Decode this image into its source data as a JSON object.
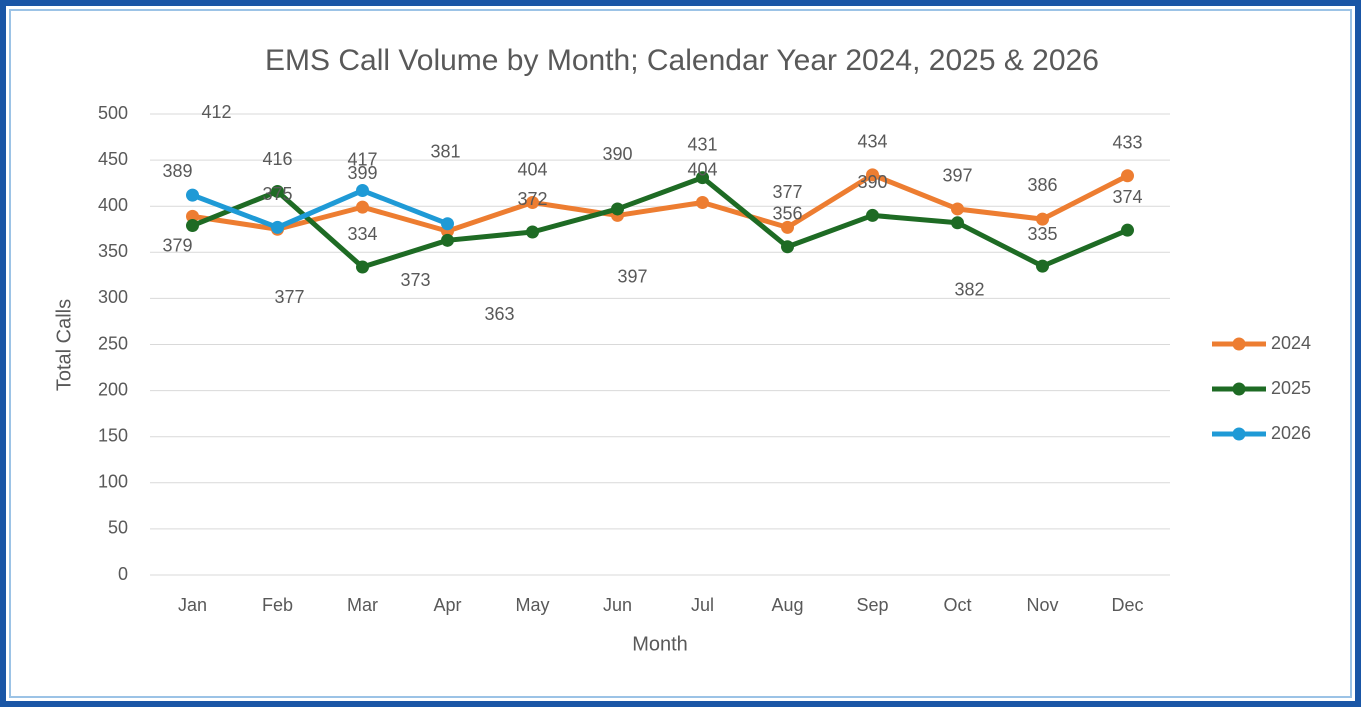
{
  "chart_data": {
    "type": "line",
    "title": "EMS Call Volume by Month; Calendar Year 2024, 2025  & 2026",
    "x_label": "Month",
    "y_label": "Total Calls",
    "categories": [
      "Jan",
      "Feb",
      "Mar",
      "Apr",
      "May",
      "Jun",
      "Jul",
      "Aug",
      "Sep",
      "Oct",
      "Nov",
      "Dec"
    ],
    "series": [
      {
        "name": "2024",
        "color": "#ed7d31",
        "values": [
          389,
          375,
          399,
          373,
          404,
          390,
          404,
          377,
          434,
          397,
          386,
          433
        ]
      },
      {
        "name": "2025",
        "color": "#1e6b24",
        "values": [
          379,
          416,
          334,
          363,
          372,
          397,
          431,
          356,
          390,
          382,
          335,
          374
        ]
      },
      {
        "name": "2026",
        "color": "#1f9ad6",
        "values": [
          412,
          377,
          417,
          381,
          null,
          null,
          null,
          null,
          null,
          null,
          null,
          null
        ]
      }
    ],
    "ylim": [
      0,
      500
    ],
    "yticks": [
      0,
      50,
      100,
      150,
      200,
      250,
      300,
      350,
      400,
      450,
      500
    ],
    "grid": true,
    "legend": "right"
  }
}
